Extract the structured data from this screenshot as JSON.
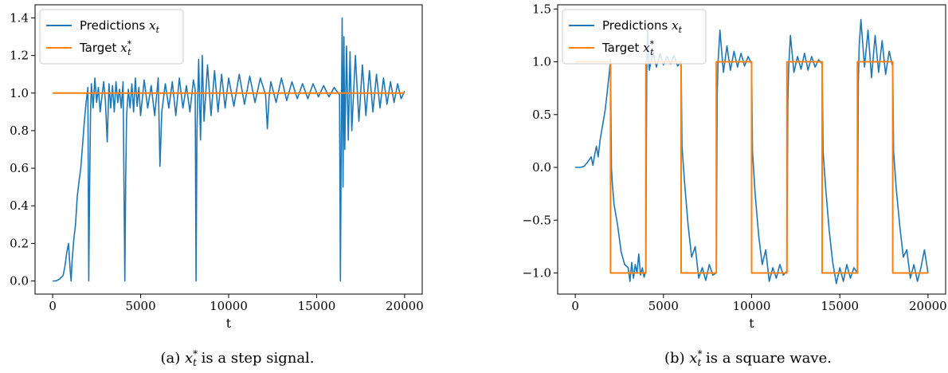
{
  "chart_data": [
    {
      "type": "line",
      "caption": {
        "prefix": "(a) ",
        "var": "x",
        "sub": "t",
        "sup": "*",
        "suffix": " is a step signal."
      },
      "xlabel": "t",
      "ylabel": "",
      "xlim": [
        -1000,
        21000
      ],
      "ylim": [
        -0.07,
        1.47
      ],
      "xticks": [
        0,
        5000,
        10000,
        15000,
        20000
      ],
      "xtick_labels": [
        "0",
        "5000",
        "10000",
        "15000",
        "20000"
      ],
      "yticks": [
        0.0,
        0.2,
        0.4,
        0.6,
        0.8,
        1.0,
        1.2,
        1.4
      ],
      "ytick_labels": [
        "0.0",
        "0.2",
        "0.4",
        "0.6",
        "0.8",
        "1.0",
        "1.2",
        "1.4"
      ],
      "legend_position": "top-left",
      "series": [
        {
          "name": "Predictions",
          "label_var": "x",
          "label_sub": "t",
          "label_sup": "",
          "color": "#1f77b4",
          "x": [
            0,
            200,
            400,
            600,
            700,
            800,
            900,
            1000,
            1050,
            1100,
            1200,
            1300,
            1400,
            1500,
            1600,
            1700,
            1800,
            1900,
            2000,
            2050,
            2100,
            2150,
            2200,
            2300,
            2400,
            2500,
            2600,
            2700,
            2800,
            2900,
            3000,
            3100,
            3200,
            3300,
            3400,
            3500,
            3600,
            3700,
            3800,
            3900,
            4000,
            4100,
            4150,
            4200,
            4300,
            4400,
            4500,
            4600,
            4700,
            4800,
            4900,
            5000,
            5200,
            5400,
            5600,
            5800,
            6000,
            6100,
            6200,
            6400,
            6600,
            6800,
            7000,
            7200,
            7400,
            7600,
            7800,
            8000,
            8100,
            8150,
            8200,
            8300,
            8400,
            8500,
            8600,
            8800,
            9000,
            9200,
            9400,
            9600,
            9800,
            10000,
            10300,
            10600,
            10900,
            11200,
            11500,
            11800,
            12100,
            12200,
            12300,
            12400,
            12700,
            13000,
            13300,
            13600,
            13900,
            14200,
            14500,
            14800,
            15100,
            15400,
            15700,
            16000,
            16300,
            16350,
            16400,
            16450,
            16500,
            16550,
            16600,
            16700,
            16800,
            16900,
            17000,
            17200,
            17400,
            17600,
            17800,
            18000,
            18200,
            18400,
            18600,
            18800,
            19000,
            19200,
            19400,
            19600,
            19800,
            20000
          ],
          "y": [
            0.0,
            0.0,
            0.01,
            0.03,
            0.08,
            0.15,
            0.2,
            0.05,
            0.0,
            0.1,
            0.22,
            0.3,
            0.45,
            0.53,
            0.6,
            0.72,
            0.85,
            0.95,
            1.03,
            0.0,
            0.5,
            0.88,
            1.05,
            0.92,
            1.08,
            0.95,
            1.03,
            0.9,
            0.98,
            1.06,
            0.95,
            0.74,
            1.05,
            0.92,
            1.04,
            0.9,
            1.06,
            0.95,
            1.02,
            0.92,
            1.06,
            0.0,
            0.55,
            0.88,
            1.02,
            0.92,
            1.05,
            0.9,
            1.08,
            0.93,
            1.03,
            0.88,
            1.07,
            0.92,
            1.04,
            0.88,
            1.08,
            0.61,
            0.9,
            1.05,
            0.92,
            1.06,
            0.88,
            1.08,
            0.92,
            1.04,
            0.9,
            1.07,
            1.02,
            0.0,
            0.8,
            1.18,
            0.75,
            1.2,
            0.85,
            1.15,
            0.88,
            1.12,
            0.9,
            1.1,
            0.92,
            1.08,
            0.93,
            1.1,
            0.94,
            1.09,
            0.95,
            1.08,
            0.99,
            0.81,
            0.98,
            1.06,
            0.95,
            1.08,
            0.96,
            1.06,
            0.97,
            1.05,
            0.97,
            1.05,
            0.98,
            1.04,
            0.98,
            1.03,
            0.99,
            0.0,
            0.78,
            1.4,
            0.5,
            1.3,
            0.7,
            1.25,
            0.75,
            1.22,
            0.8,
            1.2,
            0.85,
            1.15,
            0.88,
            1.12,
            0.9,
            1.1,
            0.92,
            1.08,
            0.94,
            1.06,
            0.95,
            1.05,
            0.97,
            1.01
          ]
        },
        {
          "name": "Target",
          "label_var": "x",
          "label_sub": "t",
          "label_sup": "*",
          "color": "#ff7f0e",
          "x": [
            0,
            20000
          ],
          "y": [
            1.0,
            1.0
          ]
        }
      ]
    },
    {
      "type": "line",
      "caption": {
        "prefix": "(b) ",
        "var": "x",
        "sub": "t",
        "sup": "*",
        "suffix": " is a square wave."
      },
      "xlabel": "t",
      "ylabel": "",
      "xlim": [
        -1000,
        21000
      ],
      "ylim": [
        -1.2,
        1.54
      ],
      "xticks": [
        0,
        5000,
        10000,
        15000,
        20000
      ],
      "xtick_labels": [
        "0",
        "5000",
        "10000",
        "15000",
        "20000"
      ],
      "yticks": [
        -1.0,
        -0.5,
        0.0,
        0.5,
        1.0,
        1.5
      ],
      "ytick_labels": [
        "−1.0",
        "−0.5",
        "0.0",
        "0.5",
        "1.0",
        "1.5"
      ],
      "legend_position": "top-left",
      "series": [
        {
          "name": "Predictions",
          "label_var": "x",
          "label_sub": "t",
          "label_sup": "",
          "color": "#1f77b4",
          "x": [
            0,
            300,
            500,
            700,
            900,
            1000,
            1100,
            1200,
            1300,
            1400,
            1500,
            1600,
            1700,
            1800,
            1900,
            2000,
            2050,
            2100,
            2200,
            2400,
            2600,
            2800,
            3000,
            3100,
            3200,
            3300,
            3400,
            3500,
            3600,
            3700,
            3800,
            3900,
            4000,
            4050,
            4100,
            4200,
            4400,
            4600,
            4800,
            5000,
            5200,
            5400,
            5600,
            5800,
            6000,
            6050,
            6200,
            6400,
            6600,
            6800,
            7000,
            7200,
            7400,
            7600,
            7800,
            8000,
            8050,
            8100,
            8200,
            8400,
            8600,
            8800,
            9000,
            9200,
            9400,
            9600,
            9800,
            10000,
            10050,
            10200,
            10400,
            10600,
            10800,
            11000,
            11200,
            11400,
            11600,
            11800,
            12000,
            12050,
            12100,
            12200,
            12400,
            12600,
            12800,
            13000,
            13200,
            13400,
            13600,
            13800,
            14000,
            14050,
            14200,
            14400,
            14600,
            14800,
            15000,
            15200,
            15400,
            15600,
            15800,
            16000,
            16050,
            16100,
            16200,
            16400,
            16600,
            16800,
            17000,
            17200,
            17400,
            17600,
            17800,
            18000,
            18050,
            18200,
            18400,
            18600,
            18800,
            19000,
            19200,
            19400,
            19600,
            19800,
            20000
          ],
          "y": [
            0.0,
            0.0,
            0.01,
            0.05,
            0.1,
            0.02,
            0.12,
            0.2,
            0.1,
            0.25,
            0.35,
            0.45,
            0.55,
            0.7,
            0.85,
            1.02,
            0.0,
            -0.15,
            -0.35,
            -0.55,
            -0.8,
            -0.92,
            -0.95,
            -1.08,
            -0.9,
            -1.05,
            -0.92,
            -1.0,
            -0.82,
            -1.02,
            -0.95,
            -1.04,
            -0.98,
            0.9,
            1.3,
            0.92,
            1.1,
            0.95,
            1.08,
            0.97,
            1.05,
            0.98,
            1.06,
            0.96,
            1.0,
            0.2,
            -0.15,
            -0.55,
            -0.85,
            -0.75,
            -1.05,
            -0.95,
            -1.07,
            -0.92,
            -1.02,
            -1.0,
            0.7,
            1.0,
            1.3,
            0.9,
            1.15,
            0.92,
            1.1,
            0.95,
            1.08,
            0.96,
            1.05,
            0.98,
            0.15,
            -0.25,
            -0.65,
            -0.92,
            -0.78,
            -1.08,
            -0.95,
            -1.05,
            -0.92,
            -1.02,
            -0.98,
            0.6,
            0.95,
            1.25,
            0.9,
            1.05,
            0.93,
            1.08,
            0.92,
            1.05,
            0.95,
            1.02,
            0.98,
            0.15,
            -0.2,
            -0.6,
            -0.9,
            -1.1,
            -0.95,
            -1.08,
            -0.92,
            -1.05,
            -0.95,
            -1.0,
            0.8,
            1.15,
            1.4,
            0.95,
            1.3,
            0.85,
            1.25,
            0.9,
            1.2,
            0.88,
            1.1,
            0.95,
            0.15,
            -0.2,
            -0.55,
            -0.85,
            -0.78,
            -1.05,
            -0.92,
            -1.08,
            -0.95,
            -0.78,
            -1.0
          ]
        },
        {
          "name": "Target",
          "label_var": "x",
          "label_sub": "t",
          "label_sup": "*",
          "color": "#ff7f0e",
          "x": [
            0,
            2000,
            2000,
            4000,
            4000,
            6000,
            6000,
            8000,
            8000,
            10000,
            10000,
            12000,
            12000,
            14000,
            14000,
            16000,
            16000,
            18000,
            18000,
            20000
          ],
          "y": [
            1,
            1,
            -1,
            -1,
            1,
            1,
            -1,
            -1,
            1,
            1,
            -1,
            -1,
            1,
            1,
            -1,
            -1,
            1,
            1,
            -1,
            -1
          ]
        }
      ]
    }
  ]
}
